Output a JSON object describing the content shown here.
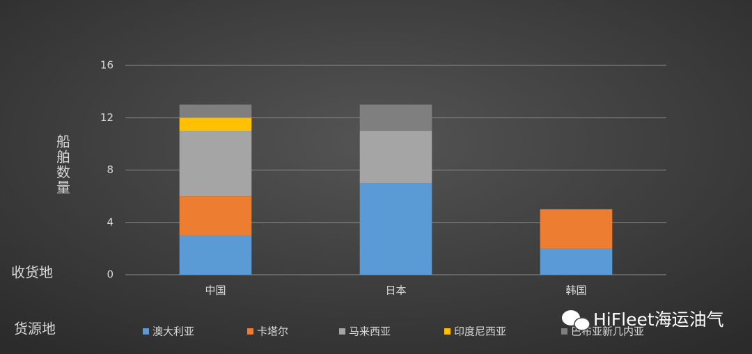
{
  "chart_data": {
    "type": "stacked_bar",
    "y_label": "船舶数量",
    "x_label": "收货地",
    "legend_title": "货源地",
    "watermark": "HiFleet海运油气",
    "categories": [
      "中国",
      "日本",
      "韩国"
    ],
    "series": [
      {
        "name": "澳大利亚",
        "color": "#5b9bd5",
        "values": [
          3,
          7,
          2
        ]
      },
      {
        "name": "卡塔尔",
        "color": "#ed7d31",
        "values": [
          3,
          0,
          3
        ]
      },
      {
        "name": "马来西亚",
        "color": "#a5a5a5",
        "values": [
          5,
          4,
          0
        ]
      },
      {
        "name": "印度尼西亚",
        "color": "#ffc000",
        "values": [
          1,
          0,
          0
        ]
      },
      {
        "name": "巴布亚新几内亚",
        "color": "#7f7f7f",
        "values": [
          1,
          2,
          0
        ]
      }
    ],
    "ylim": [
      0,
      16
    ],
    "yticks": [
      0,
      4,
      8,
      12,
      16
    ],
    "grid": true
  }
}
